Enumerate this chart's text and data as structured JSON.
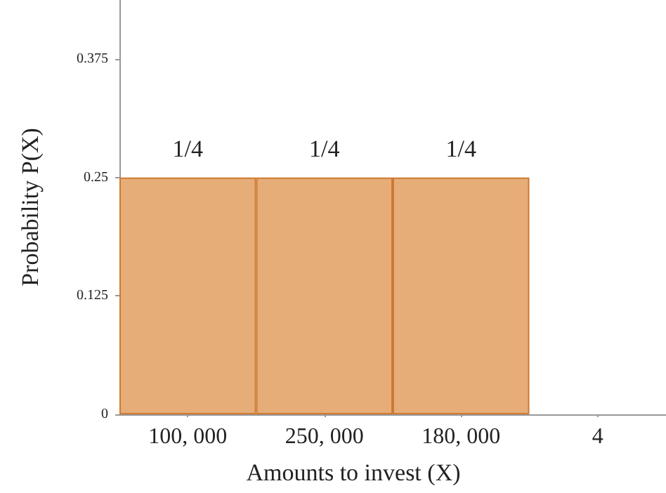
{
  "chart_data": {
    "type": "bar",
    "xlabel": "Amounts to invest (X)",
    "ylabel": "Probability P(X)",
    "categories": [
      "100, 000",
      "250, 000",
      "180, 000",
      "4"
    ],
    "values": [
      0.25,
      0.25,
      0.25,
      null
    ],
    "value_labels": [
      "1/4",
      "1/4",
      "1/4",
      null
    ],
    "color": "#e6ad78",
    "ylim": [
      0,
      0.4375
    ],
    "yticks": [
      0,
      0.125,
      0.25,
      0.375
    ],
    "grid": false
  }
}
